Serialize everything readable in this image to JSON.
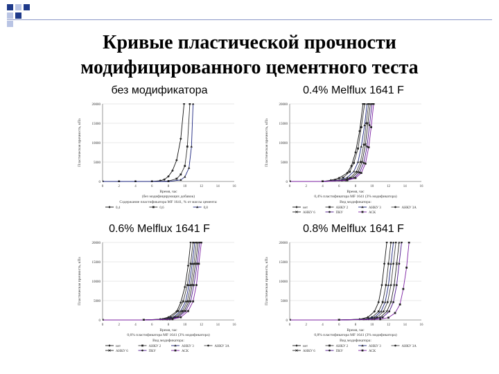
{
  "slide": {
    "title_line1": "Кривые пластической прочности",
    "title_line2": "модифицированного цементного теста",
    "accent_color": "#1f3a8a"
  },
  "chart_data": [
    {
      "type": "line",
      "panel_title": "без модификатора",
      "ylabel": "Пластическая прочность, кПа",
      "xlabel": "Время, час",
      "xlabel2": "(без модифицирующих добавок)",
      "caption": "Содержание пластификатора МF 1641, % от массы цемента:",
      "xlim": [
        0,
        16
      ],
      "ylim": [
        0,
        20000
      ],
      "x_ticks": [
        0,
        2,
        4,
        6,
        8,
        10,
        12,
        14,
        16
      ],
      "y_ticks": [
        0,
        5000,
        10000,
        15000,
        20000
      ],
      "legend": [
        "0,4",
        "0,6",
        "0,8"
      ],
      "series": [
        {
          "name": "0,4",
          "x": [
            0,
            2,
            4,
            6,
            7,
            7.5,
            8,
            8.5,
            9,
            9.5,
            9.9
          ],
          "y": [
            0,
            0,
            0,
            0,
            200,
            500,
            1300,
            2800,
            5500,
            11000,
            20000
          ]
        },
        {
          "name": "0,6",
          "x": [
            0,
            2,
            4,
            6,
            8,
            9,
            9.5,
            10,
            10.3,
            10.6
          ],
          "y": [
            0,
            0,
            0,
            0,
            100,
            700,
            1800,
            4000,
            9000,
            20000
          ]
        },
        {
          "name": "0,8",
          "x": [
            0,
            2,
            4,
            6,
            8,
            9.5,
            10,
            10.5,
            10.8,
            11
          ],
          "y": [
            0,
            0,
            0,
            0,
            0,
            400,
            1200,
            3500,
            9000,
            20000
          ]
        }
      ]
    },
    {
      "type": "line",
      "panel_title": "0.4% Melflux 1641 F",
      "ylabel": "Пластическая прочность, кПа",
      "xlabel": "Время, час",
      "xlabel2": "0,4% пластификатора МF 1641 (3% модификатора)",
      "caption": "Вид модификатора:",
      "xlim": [
        0,
        16
      ],
      "ylim": [
        0,
        20000
      ],
      "x_ticks": [
        0,
        2,
        4,
        6,
        8,
        10,
        12,
        14,
        16
      ],
      "y_ticks": [
        0,
        5000,
        10000,
        15000,
        20000
      ],
      "legend": [
        "нет",
        "АНКУ 2",
        "АНКУ 3",
        "АНКУ 3А",
        "АНКУ 6",
        "ПКУ",
        "АСК"
      ],
      "series": [
        {
          "name": "нет",
          "x": [
            0,
            4,
            5,
            6,
            7,
            7.5,
            8,
            8.5,
            8.9
          ],
          "y": [
            0,
            0,
            300,
            900,
            2200,
            4000,
            7500,
            13000,
            20000
          ]
        },
        {
          "name": "АНКУ 2",
          "x": [
            0,
            4,
            5.5,
            6.5,
            7.3,
            7.8,
            8.3,
            8.7,
            9.1
          ],
          "y": [
            0,
            0,
            300,
            1000,
            2500,
            4800,
            8500,
            14000,
            20000
          ]
        },
        {
          "name": "АНКУ 3",
          "x": [
            0,
            4,
            6,
            7,
            7.8,
            8.3,
            8.7,
            9.1,
            9.4
          ],
          "y": [
            0,
            0,
            300,
            1000,
            2600,
            5000,
            9000,
            14500,
            20000
          ]
        },
        {
          "name": "АНКУ 3А",
          "x": [
            0,
            4,
            6.3,
            7.3,
            8.1,
            8.6,
            9.0,
            9.3,
            9.6
          ],
          "y": [
            0,
            0,
            300,
            900,
            2500,
            5000,
            9500,
            15000,
            20000
          ]
        },
        {
          "name": "АНКУ 6",
          "x": [
            0,
            4,
            6.5,
            7.5,
            8.3,
            8.8,
            9.2,
            9.5,
            9.8
          ],
          "y": [
            0,
            0,
            300,
            900,
            2400,
            5000,
            9500,
            15000,
            20000
          ]
        },
        {
          "name": "ПКУ",
          "x": [
            0,
            4,
            6.8,
            7.8,
            8.5,
            9.0,
            9.4,
            9.7,
            10.0
          ],
          "y": [
            0,
            0,
            300,
            900,
            2300,
            4800,
            9000,
            14500,
            20000
          ]
        },
        {
          "name": "АСК",
          "x": [
            0,
            4,
            7,
            8,
            8.7,
            9.2,
            9.6,
            9.9,
            10.2
          ],
          "y": [
            0,
            0,
            300,
            900,
            2200,
            4600,
            8800,
            14000,
            20000
          ]
        }
      ]
    },
    {
      "type": "line",
      "panel_title": "0.6% Melflux 1641 F",
      "ylabel": "Пластическая прочность, кПа",
      "xlabel": "Время, час",
      "xlabel2": "0,6% пластификатора МF 1641 (3% модификатора)",
      "caption": "Вид модификатора:",
      "xlim": [
        0,
        16
      ],
      "ylim": [
        0,
        20000
      ],
      "x_ticks": [
        0,
        2,
        4,
        6,
        8,
        10,
        12,
        14,
        16
      ],
      "y_ticks": [
        0,
        5000,
        10000,
        15000,
        20000
      ],
      "legend": [
        "нет",
        "АНКУ 2",
        "АНКУ 3",
        "АНКУ 3А",
        "АНКУ 6",
        "ПКУ",
        "АСК"
      ],
      "series": [
        {
          "name": "нет",
          "x": [
            0,
            5,
            7,
            8,
            9,
            9.5,
            10,
            10.4,
            10.7
          ],
          "y": [
            0,
            0,
            200,
            700,
            2200,
            4500,
            8500,
            14000,
            20000
          ]
        },
        {
          "name": "АНКУ 2",
          "x": [
            0,
            5,
            7.3,
            8.3,
            9.2,
            9.8,
            10.3,
            10.7,
            11.0
          ],
          "y": [
            0,
            0,
            200,
            700,
            2300,
            4800,
            9000,
            14500,
            20000
          ]
        },
        {
          "name": "АНКУ 3",
          "x": [
            0,
            5,
            7.6,
            8.6,
            9.5,
            10.1,
            10.5,
            10.9,
            11.2
          ],
          "y": [
            0,
            0,
            200,
            700,
            2300,
            4800,
            9000,
            14500,
            20000
          ]
        },
        {
          "name": "АНКУ 3А",
          "x": [
            0,
            5,
            7.8,
            8.8,
            9.7,
            10.3,
            10.7,
            11.1,
            11.4
          ],
          "y": [
            0,
            0,
            200,
            700,
            2300,
            4800,
            9000,
            14500,
            20000
          ]
        },
        {
          "name": "АНКУ 6",
          "x": [
            0,
            5,
            8,
            9,
            9.9,
            10.5,
            10.9,
            11.3,
            11.6
          ],
          "y": [
            0,
            0,
            200,
            700,
            2300,
            4800,
            9000,
            14500,
            20000
          ]
        },
        {
          "name": "ПКУ",
          "x": [
            0,
            5,
            8.2,
            9.2,
            10.1,
            10.7,
            11.1,
            11.5,
            11.8
          ],
          "y": [
            0,
            0,
            200,
            700,
            2300,
            4800,
            9000,
            14500,
            20000
          ]
        },
        {
          "name": "АСК",
          "x": [
            0,
            5,
            8.5,
            9.5,
            10.4,
            11.0,
            11.4,
            11.7,
            12.0
          ],
          "y": [
            0,
            0,
            200,
            700,
            2300,
            4800,
            9000,
            14500,
            20000
          ]
        }
      ]
    },
    {
      "type": "line",
      "panel_title": "0.8% Melflux 1641 F",
      "ylabel": "Пластическая прочность, кПа",
      "xlabel": "Время, час",
      "xlabel2": "0,8% пластификатора МF 1641 (3% модификатора)",
      "caption": "Вид модификатора:",
      "xlim": [
        0,
        16
      ],
      "ylim": [
        0,
        20000
      ],
      "x_ticks": [
        0,
        2,
        4,
        6,
        8,
        10,
        12,
        14,
        16
      ],
      "y_ticks": [
        0,
        5000,
        10000,
        15000,
        20000
      ],
      "legend": [
        "нет",
        "АНКУ 2",
        "АНКУ 3",
        "АНКУ 3А",
        "АНКУ 6",
        "ПКУ",
        "АСК"
      ],
      "series": [
        {
          "name": "нет",
          "x": [
            0,
            6,
            8.5,
            9.5,
            10.3,
            10.8,
            11.2,
            11.5,
            11.8
          ],
          "y": [
            0,
            0,
            200,
            700,
            2200,
            4600,
            9000,
            14500,
            20000
          ]
        },
        {
          "name": "АНКУ 2",
          "x": [
            0,
            6,
            9,
            10,
            10.8,
            11.3,
            11.7,
            12.0,
            12.3
          ],
          "y": [
            0,
            0,
            200,
            700,
            2200,
            4600,
            9000,
            14500,
            20000
          ]
        },
        {
          "name": "АНКУ 3",
          "x": [
            0,
            6,
            9.3,
            10.3,
            11.1,
            11.6,
            12.0,
            12.3,
            12.6
          ],
          "y": [
            0,
            0,
            200,
            700,
            2200,
            4600,
            9000,
            14500,
            20000
          ]
        },
        {
          "name": "АНКУ 3А",
          "x": [
            0,
            6,
            9.6,
            10.6,
            11.4,
            11.9,
            12.3,
            12.6,
            12.9
          ],
          "y": [
            0,
            0,
            200,
            700,
            2200,
            4600,
            9000,
            14500,
            20000
          ]
        },
        {
          "name": "АНКУ 6",
          "x": [
            0,
            6,
            10,
            11,
            11.8,
            12.3,
            12.7,
            13.0,
            13.3
          ],
          "y": [
            0,
            0,
            200,
            700,
            2200,
            4600,
            9000,
            14500,
            20000
          ]
        },
        {
          "name": "ПКУ",
          "x": [
            0,
            6,
            10.3,
            11.3,
            12.1,
            12.6,
            13.0,
            13.3,
            13.6
          ],
          "y": [
            0,
            0,
            200,
            700,
            2200,
            4600,
            9000,
            14500,
            20000
          ]
        },
        {
          "name": "АСК",
          "x": [
            0,
            6,
            11,
            12,
            12.8,
            13.4,
            13.8,
            14.2,
            14.5
          ],
          "y": [
            0,
            0,
            200,
            600,
            1800,
            4000,
            8000,
            13500,
            20000
          ]
        }
      ]
    }
  ]
}
